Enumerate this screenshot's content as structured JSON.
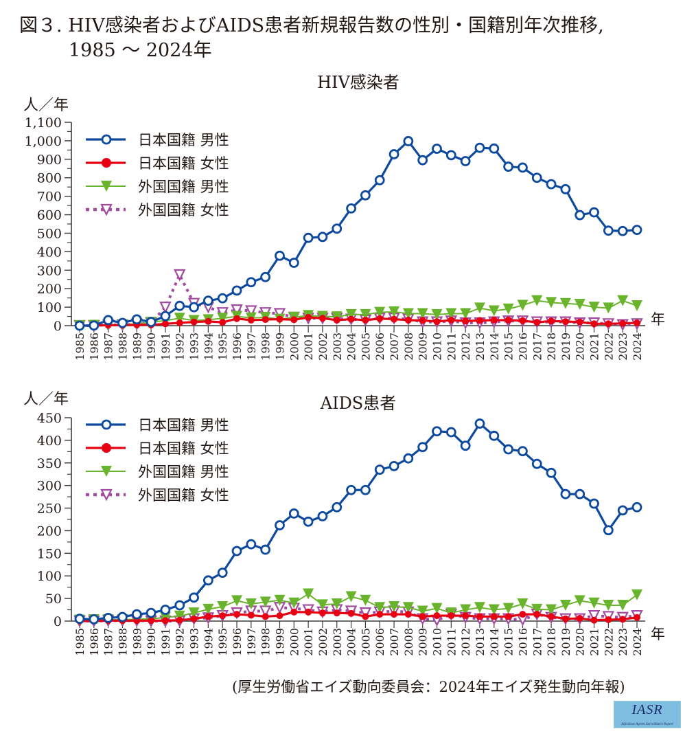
{
  "figure": {
    "title_line1": "図３.  HIV感染者およびAIDS患者新規報告数の性別・国籍別年次推移,",
    "title_line2": "1985 〜 2024年",
    "source": "(厚生労働省エイズ動向委員会：2024年エイズ発生動向年報)",
    "logo": {
      "text": "IASR",
      "subtitle": "Infectious Agents Surveillance Report",
      "bg_color": "#7fbde0"
    }
  },
  "chart_data": [
    {
      "type": "line",
      "title": "HIV感染者",
      "ylabel": "人／年",
      "xlabel": "年",
      "ylim": [
        0,
        1100
      ],
      "yticks": [
        0,
        100,
        200,
        300,
        400,
        500,
        600,
        700,
        800,
        900,
        1000,
        1100
      ],
      "ytick_labels": [
        "0",
        "100",
        "200",
        "300",
        "400",
        "500",
        "600",
        "700",
        "800",
        "900",
        "1,000",
        "1,100"
      ],
      "legend_position": "top-left",
      "x": [
        1985,
        1986,
        1987,
        1988,
        1989,
        1990,
        1991,
        1992,
        1993,
        1994,
        1995,
        1996,
        1997,
        1998,
        1999,
        2000,
        2001,
        2002,
        2003,
        2004,
        2005,
        2006,
        2007,
        2008,
        2009,
        2010,
        2011,
        2012,
        2013,
        2014,
        2015,
        2016,
        2017,
        2018,
        2019,
        2020,
        2021,
        2022,
        2023,
        2024
      ],
      "series": [
        {
          "name": "日本国籍 男性",
          "color": "#0d4a9e",
          "marker": "open-circle",
          "dash": "solid",
          "values": [
            0,
            1,
            30,
            15,
            34,
            20,
            52,
            107,
            100,
            135,
            148,
            190,
            235,
            263,
            378,
            340,
            475,
            480,
            525,
            634,
            705,
            787,
            927,
            998,
            895,
            957,
            922,
            890,
            962,
            958,
            860,
            855,
            800,
            765,
            738,
            598,
            613,
            514,
            512,
            518
          ]
        },
        {
          "name": "日本国籍 女性",
          "color": "#e60012",
          "marker": "filled-circle",
          "dash": "solid",
          "values": [
            0,
            0,
            3,
            2,
            5,
            4,
            10,
            15,
            20,
            23,
            18,
            38,
            30,
            33,
            35,
            32,
            45,
            40,
            30,
            35,
            30,
            38,
            35,
            30,
            28,
            22,
            30,
            25,
            28,
            30,
            30,
            27,
            18,
            25,
            22,
            20,
            10,
            10,
            12,
            15
          ]
        },
        {
          "name": "外国国籍 男性",
          "color": "#6ab42d",
          "marker": "filled-triangle-down",
          "dash": "solid",
          "values": [
            0,
            2,
            5,
            5,
            10,
            18,
            28,
            40,
            28,
            32,
            40,
            50,
            42,
            45,
            35,
            45,
            55,
            50,
            48,
            60,
            60,
            72,
            75,
            65,
            65,
            60,
            65,
            65,
            95,
            80,
            90,
            110,
            135,
            125,
            120,
            115,
            100,
            95,
            135,
            108
          ]
        },
        {
          "name": "外国国籍 女性",
          "color": "#a24ca1",
          "marker": "open-triangle-down",
          "dash": "dotted",
          "values": [
            0,
            0,
            5,
            4,
            8,
            15,
            100,
            275,
            120,
            100,
            70,
            85,
            80,
            70,
            65,
            45,
            40,
            40,
            40,
            35,
            30,
            40,
            40,
            35,
            20,
            20,
            25,
            15,
            15,
            20,
            25,
            25,
            20,
            20,
            20,
            15,
            15,
            10,
            5,
            10
          ]
        }
      ]
    },
    {
      "type": "line",
      "title": "AIDS患者",
      "ylabel": "人／年",
      "xlabel": "年",
      "ylim": [
        0,
        450
      ],
      "yticks": [
        0,
        50,
        100,
        150,
        200,
        250,
        300,
        350,
        400,
        450
      ],
      "ytick_labels": [
        "0",
        "50",
        "100",
        "150",
        "200",
        "250",
        "300",
        "350",
        "400",
        "450"
      ],
      "legend_position": "top-left",
      "x": [
        1985,
        1986,
        1987,
        1988,
        1989,
        1990,
        1991,
        1992,
        1993,
        1994,
        1995,
        1996,
        1997,
        1998,
        1999,
        2000,
        2001,
        2002,
        2003,
        2004,
        2005,
        2006,
        2007,
        2008,
        2009,
        2010,
        2011,
        2012,
        2013,
        2014,
        2015,
        2016,
        2017,
        2018,
        2019,
        2020,
        2021,
        2022,
        2023,
        2024
      ],
      "series": [
        {
          "name": "日本国籍 男性",
          "color": "#0d4a9e",
          "marker": "open-circle",
          "dash": "solid",
          "values": [
            5,
            4,
            7,
            9,
            15,
            18,
            25,
            35,
            52,
            90,
            107,
            155,
            170,
            158,
            212,
            238,
            220,
            232,
            252,
            290,
            290,
            335,
            343,
            360,
            385,
            420,
            418,
            388,
            437,
            410,
            380,
            376,
            348,
            328,
            281,
            281,
            260,
            201,
            245,
            252
          ]
        },
        {
          "name": "日本国籍 女性",
          "color": "#e60012",
          "marker": "filled-circle",
          "dash": "solid",
          "values": [
            0,
            0,
            1,
            1,
            1,
            1,
            1,
            2,
            5,
            10,
            12,
            15,
            13,
            10,
            12,
            20,
            20,
            18,
            18,
            17,
            10,
            15,
            15,
            15,
            10,
            12,
            12,
            12,
            10,
            10,
            10,
            15,
            15,
            10,
            5,
            6,
            2,
            3,
            4,
            8
          ]
        },
        {
          "name": "外国国籍 男性",
          "color": "#6ab42d",
          "marker": "filled-triangle-down",
          "dash": "solid",
          "values": [
            2,
            3,
            3,
            3,
            4,
            5,
            8,
            11,
            18,
            26,
            32,
            45,
            38,
            42,
            46,
            40,
            60,
            36,
            38,
            54,
            46,
            30,
            32,
            30,
            22,
            28,
            18,
            25,
            30,
            25,
            28,
            38,
            26,
            25,
            35,
            45,
            40,
            35,
            35,
            58
          ]
        },
        {
          "name": "外国国籍 女性",
          "color": "#a24ca1",
          "marker": "open-triangle-down",
          "dash": "dotted",
          "values": [
            0,
            0,
            1,
            1,
            1,
            0,
            0,
            0,
            5,
            7,
            12,
            18,
            22,
            22,
            30,
            28,
            25,
            20,
            25,
            22,
            18,
            20,
            22,
            20,
            5,
            2,
            15,
            8,
            5,
            5,
            5,
            3,
            15,
            8,
            5,
            5,
            12,
            10,
            8,
            12
          ]
        }
      ]
    }
  ]
}
